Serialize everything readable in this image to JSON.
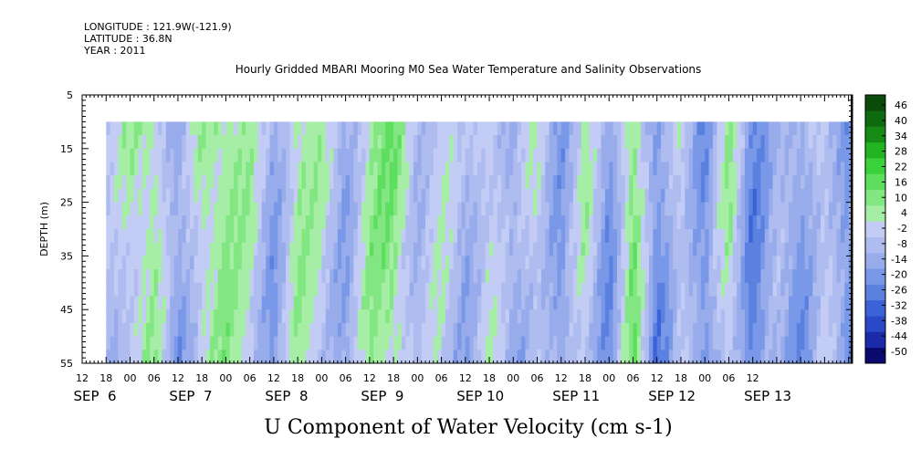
{
  "header": {
    "longitude": "LONGITUDE : 121.9W(-121.9)",
    "latitude": "LATITUDE : 36.8N",
    "year": "YEAR : 2011"
  },
  "chart_data": {
    "type": "heatmap",
    "title": "Hourly Gridded MBARI Mooring M0 Sea Water Temperature and Salinity Observations",
    "xlabel": "U Component of Water Velocity (cm s-1)",
    "ylabel": "DEPTH (m)",
    "y_ticks": [
      5,
      15,
      25,
      35,
      45,
      55
    ],
    "ylim": [
      5,
      55
    ],
    "y_inverted": true,
    "data_depth_range": [
      10,
      55
    ],
    "x_hour_ticks": [
      "12",
      "18",
      "00",
      "06",
      "12",
      "18",
      "00",
      "06",
      "12",
      "18",
      "00",
      "06",
      "12",
      "18",
      "00",
      "06",
      "12",
      "18",
      "00",
      "06",
      "12",
      "18",
      "00",
      "06",
      "12",
      "18",
      "00",
      "06",
      "12"
    ],
    "x_start": "2011-09-05 12:00",
    "x_end": "2011-09-13 13:00",
    "data_start": "2011-09-05 18:00",
    "day_labels": [
      {
        "label": "SEP  6",
        "date": "2011-09-06"
      },
      {
        "label": "SEP  7",
        "date": "2011-09-07"
      },
      {
        "label": "SEP  8",
        "date": "2011-09-08"
      },
      {
        "label": "SEP  9",
        "date": "2011-09-09"
      },
      {
        "label": "SEP 10",
        "date": "2011-09-10"
      },
      {
        "label": "SEP 11",
        "date": "2011-09-11"
      },
      {
        "label": "SEP 12",
        "date": "2011-09-12"
      },
      {
        "label": "SEP 13",
        "date": "2011-09-13"
      }
    ],
    "colorbar_levels": [
      -50,
      -44,
      -38,
      -32,
      -26,
      -20,
      -14,
      -8,
      -2,
      4,
      10,
      16,
      22,
      28,
      34,
      40,
      46
    ],
    "colorbar_colors": [
      "#0a0a6e",
      "#1a2aa8",
      "#2a48c8",
      "#3c62d8",
      "#5a80e0",
      "#7a98e8",
      "#98acec",
      "#aebcf0",
      "#c2ccf4",
      "#a6eea6",
      "#82e682",
      "#5ede5e",
      "#3ad23a",
      "#22b422",
      "#168c16",
      "#0e6a0e",
      "#0a4a0a"
    ],
    "colorbar_labels": [
      "46",
      "40",
      "34",
      "28",
      "22",
      "16",
      "10",
      "4",
      "-2",
      "-8",
      "-14",
      "-20",
      "-26",
      "-32",
      "-38",
      "-44",
      "-50"
    ],
    "u_velocity_profile": [
      {
        "time": "2011-09-05 18:00",
        "u": -6
      },
      {
        "time": "2011-09-06 00:00",
        "u": 6
      },
      {
        "time": "2011-09-06 06:00",
        "u": 10
      },
      {
        "time": "2011-09-06 12:00",
        "u": -14
      },
      {
        "time": "2011-09-06 18:00",
        "u": 8
      },
      {
        "time": "2011-09-07 00:00",
        "u": 12
      },
      {
        "time": "2011-09-07 06:00",
        "u": 6
      },
      {
        "time": "2011-09-07 12:00",
        "u": -12
      },
      {
        "time": "2011-09-07 18:00",
        "u": 10
      },
      {
        "time": "2011-09-08 00:00",
        "u": 4
      },
      {
        "time": "2011-09-08 06:00",
        "u": -10
      },
      {
        "time": "2011-09-08 12:00",
        "u": 10
      },
      {
        "time": "2011-09-08 18:00",
        "u": 14
      },
      {
        "time": "2011-09-09 00:00",
        "u": -4
      },
      {
        "time": "2011-09-09 06:00",
        "u": 4
      },
      {
        "time": "2011-09-09 12:00",
        "u": -8
      },
      {
        "time": "2011-09-09 18:00",
        "u": 6
      },
      {
        "time": "2011-09-10 00:00",
        "u": -10
      },
      {
        "time": "2011-09-10 06:00",
        "u": 4
      },
      {
        "time": "2011-09-10 12:00",
        "u": -14
      },
      {
        "time": "2011-09-10 18:00",
        "u": 6
      },
      {
        "time": "2011-09-11 00:00",
        "u": -16
      },
      {
        "time": "2011-09-11 06:00",
        "u": 16
      },
      {
        "time": "2011-09-11 12:00",
        "u": -20
      },
      {
        "time": "2011-09-11 18:00",
        "u": 4
      },
      {
        "time": "2011-09-12 00:00",
        "u": -18
      },
      {
        "time": "2011-09-12 06:00",
        "u": 10
      },
      {
        "time": "2011-09-12 12:00",
        "u": -20
      },
      {
        "time": "2011-09-12 18:00",
        "u": -6
      },
      {
        "time": "2011-09-13 00:00",
        "u": -14
      },
      {
        "time": "2011-09-13 06:00",
        "u": 4
      },
      {
        "time": "2011-09-13 12:00",
        "u": -18
      }
    ]
  }
}
